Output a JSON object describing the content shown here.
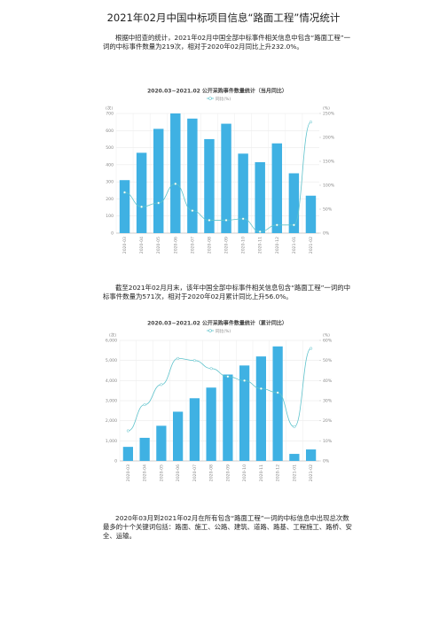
{
  "title": "2021年02月中国中标项目信息“路面工程”情况统计",
  "paragraphs": [
    "根据中招查的统计，2021年02月中国全部中标事件相关信息中包含“路面工程”一词的中标事件数量为219次，相对于2020年02月同比上升232.0%。",
    "截至2021年02月月末，该年中国全部中标事件相关信息包含“路面工程”一词的中标事件数量为571次，相对于2020年02月累计同比上升56.0%。",
    "2020年03月到2021年02月在所有包含“路面工程”一词的中标信息中出现总次数最多的十个关键词包括：路面、施工、公路、建筑、道路、路基、工程施工、路桥、安全、运输。"
  ],
  "chart_data": [
    {
      "type": "bar",
      "title": "2020.03~2021.02 公开采购事件数量统计（当月同比）",
      "y_label": "(次)",
      "y2_label": "(%)",
      "categories": [
        "2020-03",
        "2020-04",
        "2020-05",
        "2020-06",
        "2020-07",
        "2020-08",
        "2020-09",
        "2020-10",
        "2020-11",
        "2020-12",
        "2021-01",
        "2021-02"
      ],
      "series": [
        {
          "color": "#3fb1e3",
          "values": [
            310,
            470,
            610,
            700,
            670,
            550,
            640,
            465,
            415,
            525,
            350,
            219
          ]
        },
        {
          "name": "同比(%)",
          "color": "#5fc3cc",
          "axis": "y2",
          "values": [
            85,
            55,
            63,
            103,
            47,
            27,
            27,
            30,
            3,
            17,
            17,
            232
          ]
        }
      ],
      "ylim": [
        0,
        700
      ],
      "yticks": [
        0,
        100,
        200,
        300,
        400,
        500,
        600,
        700
      ],
      "y2lim": [
        0,
        250
      ],
      "y2ticks": [
        {
          "value": 0,
          "label": "0%"
        },
        {
          "value": 50,
          "label": "50%"
        },
        {
          "value": 100,
          "label": "100%"
        },
        {
          "value": 150,
          "label": "150%"
        },
        {
          "value": 200,
          "label": "200%"
        },
        {
          "value": 250,
          "label": "250%"
        }
      ],
      "grid": true
    },
    {
      "type": "bar",
      "title": "2020.03~2021.02 公开采购事件数量统计（累计同比）",
      "y_label": "(次)",
      "y2_label": "(%)",
      "categories": [
        "2020-03",
        "2020-04",
        "2020-05",
        "2020-06",
        "2020-07",
        "2020-08",
        "2020-09",
        "2020-10",
        "2020-11",
        "2020-12",
        "2021-01",
        "2021-02"
      ],
      "series": [
        {
          "color": "#3fb1e3",
          "values": [
            700,
            1150,
            1750,
            2450,
            3120,
            3650,
            4300,
            4750,
            5200,
            5700,
            350,
            571
          ]
        },
        {
          "name": "同比(%)",
          "color": "#5fc3cc",
          "axis": "y2",
          "values": [
            15,
            28,
            38,
            51,
            50,
            46,
            42,
            40,
            36,
            34,
            17,
            56
          ]
        }
      ],
      "ylim": [
        0,
        6000
      ],
      "yticks": [
        0,
        {
          "value": 1000,
          "label": "1,000"
        },
        {
          "value": 2000,
          "label": "2,000"
        },
        {
          "value": 3000,
          "label": "3,000"
        },
        {
          "value": 4000,
          "label": "4,000"
        },
        {
          "value": 5000,
          "label": "5,000"
        },
        {
          "value": 6000,
          "label": "6,000"
        }
      ],
      "y2lim": [
        0,
        60
      ],
      "y2ticks": [
        {
          "value": 0,
          "label": "0%"
        },
        {
          "value": 10,
          "label": "10%"
        },
        {
          "value": 20,
          "label": "20%"
        },
        {
          "value": 30,
          "label": "30%"
        },
        {
          "value": 40,
          "label": "40%"
        },
        {
          "value": 50,
          "label": "50%"
        },
        {
          "value": 60,
          "label": "60%"
        }
      ],
      "grid": true
    }
  ]
}
